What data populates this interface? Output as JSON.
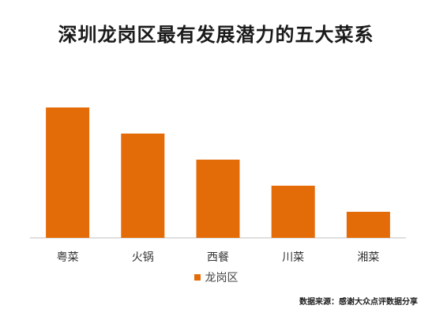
{
  "title": "深圳龙岗区最有发展潜力的五大菜系",
  "source_note": "数据来源：感谢大众点评数据分享",
  "colors": {
    "bar": "#e36c09",
    "axis": "#bfbfbf"
  },
  "chart_data": {
    "type": "bar",
    "title": "深圳龙岗区最有发展潜力的五大菜系",
    "categories": [
      "粤菜",
      "火锅",
      "西餐",
      "川菜",
      "湘菜"
    ],
    "series": [
      {
        "name": "龙岗区",
        "values": [
          100,
          80,
          60,
          40,
          20
        ]
      }
    ],
    "xlabel": "",
    "ylabel": "",
    "ylim": [
      0,
      100
    ],
    "grid": false,
    "legend": "bottom-center"
  }
}
